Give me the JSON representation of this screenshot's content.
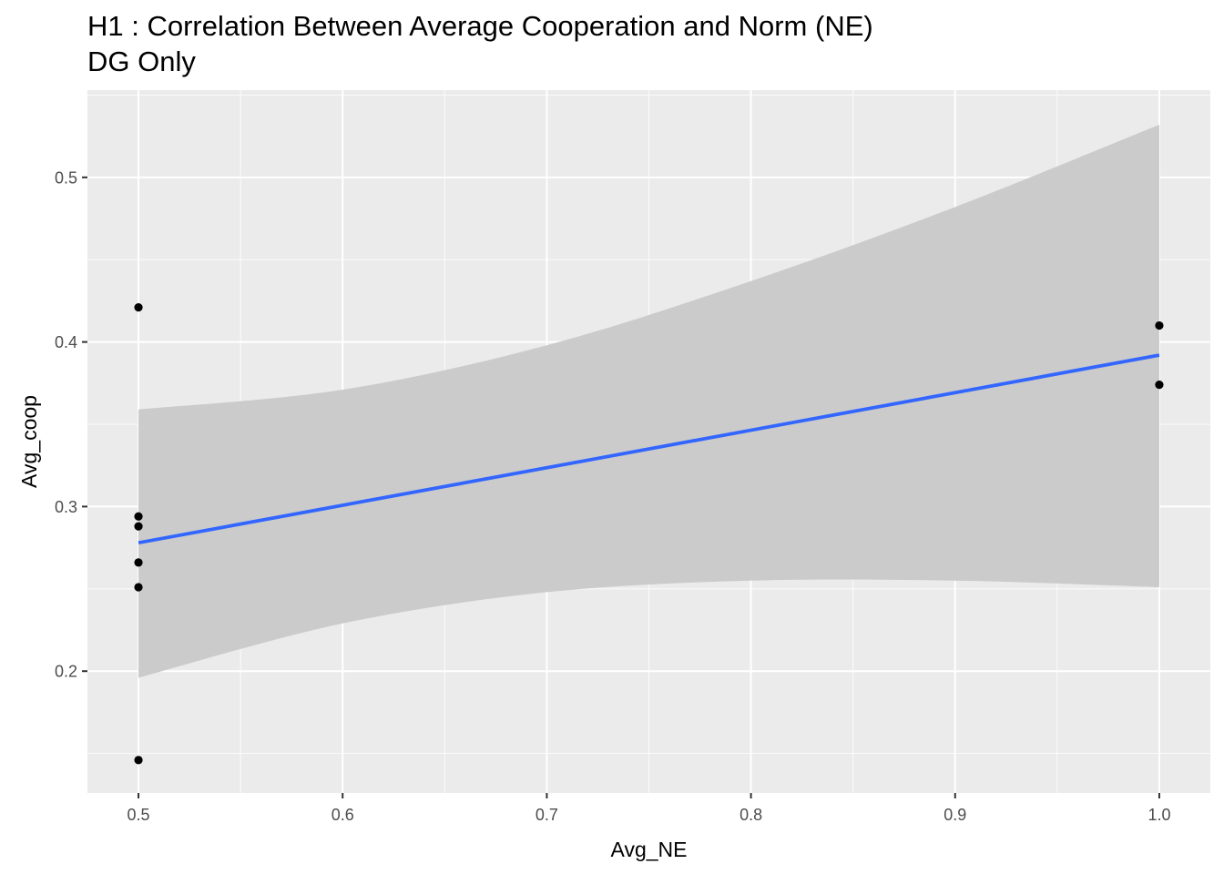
{
  "chart_data": {
    "type": "scatter",
    "title": "H1 : Correlation Between Average Cooperation and Norm (NE)",
    "subtitle": "DG Only",
    "xlabel": "Avg_NE",
    "ylabel": "Avg_coop",
    "xlim": [
      0.475,
      1.025
    ],
    "ylim": [
      0.126,
      0.553
    ],
    "x_ticks": [
      0.5,
      0.6,
      0.7,
      0.8,
      0.9,
      1.0
    ],
    "x_tick_labels": [
      "0.5",
      "0.6",
      "0.7",
      "0.8",
      "0.9",
      "1.0"
    ],
    "y_ticks": [
      0.2,
      0.3,
      0.4,
      0.5
    ],
    "y_tick_labels": [
      "0.2",
      "0.3",
      "0.4",
      "0.5"
    ],
    "grid": true,
    "points": [
      {
        "x": 0.5,
        "y": 0.421
      },
      {
        "x": 0.5,
        "y": 0.294
      },
      {
        "x": 0.5,
        "y": 0.288
      },
      {
        "x": 0.5,
        "y": 0.266
      },
      {
        "x": 0.5,
        "y": 0.251
      },
      {
        "x": 0.5,
        "y": 0.146
      },
      {
        "x": 1.0,
        "y": 0.41
      },
      {
        "x": 1.0,
        "y": 0.374
      }
    ],
    "fit_line": {
      "method": "lm",
      "x": [
        0.5,
        1.0
      ],
      "y": [
        0.278,
        0.392
      ]
    },
    "confidence_band": {
      "x": [
        0.5,
        0.6,
        0.7,
        0.8,
        0.9,
        1.0
      ],
      "upper": [
        0.359,
        0.371,
        0.398,
        0.437,
        0.482,
        0.532
      ],
      "lower": [
        0.196,
        0.229,
        0.248,
        0.255,
        0.255,
        0.251
      ]
    },
    "colors": {
      "panel": "#ebebeb",
      "grid_major": "#ffffff",
      "band": "#cbcbcb",
      "line": "#3366ff",
      "points": "#000000",
      "tick_text": "#4d4d4d",
      "axis_title": "#000000"
    }
  }
}
